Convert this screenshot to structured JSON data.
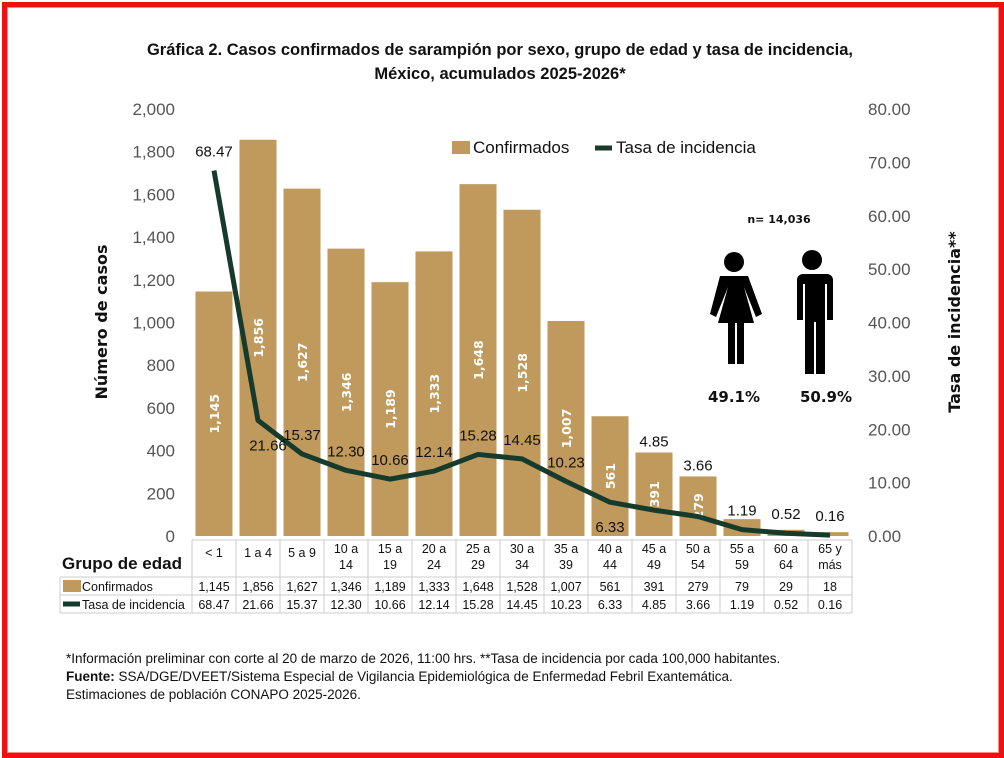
{
  "chart_data": {
    "type": "bar+line",
    "title_line1": "Gráfica 2. Casos confirmados  de sarampión por sexo, grupo de edad y tasa de incidencia,",
    "title_line2": "México, acumulados 2025-2026*",
    "ylabel": "Número de casos",
    "y2label": "Tasa de incidencia**",
    "xlabel": "Grupo de edad",
    "ylim": [
      0,
      2000
    ],
    "y2lim": [
      0,
      80
    ],
    "yticks": [
      "0",
      "200",
      "400",
      "600",
      "800",
      "1,000",
      "1,200",
      "1,400",
      "1,600",
      "1,800",
      "2,000"
    ],
    "y2ticks": [
      "0.00",
      "10.00",
      "20.00",
      "30.00",
      "40.00",
      "50.00",
      "60.00",
      "70.00",
      "80.00"
    ],
    "categories": [
      "< 1",
      "1 a 4",
      "5 a 9",
      "10 a 14",
      "15 a 19",
      "20 a 24",
      "25 a 29",
      "30 a 34",
      "35 a 39",
      "40 a 44",
      "45 a 49",
      "50 a 54",
      "55 a 59",
      "60 a 64",
      "65 y más"
    ],
    "category_lines": [
      [
        "< 1"
      ],
      [
        "1 a 4"
      ],
      [
        "5 a 9"
      ],
      [
        "10 a",
        "14"
      ],
      [
        "15 a",
        "19"
      ],
      [
        "20 a",
        "24"
      ],
      [
        "25 a",
        "29"
      ],
      [
        "30 a",
        "34"
      ],
      [
        "35 a",
        "39"
      ],
      [
        "40 a",
        "44"
      ],
      [
        "45 a",
        "49"
      ],
      [
        "50 a",
        "54"
      ],
      [
        "55 a",
        "59"
      ],
      [
        "60 a",
        "64"
      ],
      [
        "65 y",
        "más"
      ]
    ],
    "series": [
      {
        "name": "Confirmados",
        "type": "bar",
        "color": "#bf9a5c",
        "values": [
          1145,
          1856,
          1627,
          1346,
          1189,
          1333,
          1648,
          1528,
          1007,
          561,
          391,
          279,
          79,
          29,
          18
        ],
        "labels": [
          "1,145",
          "1,856",
          "1,627",
          "1,346",
          "1,189",
          "1,333",
          "1,648",
          "1,528",
          "1,007",
          "561",
          "391",
          "279",
          "79",
          "29",
          "18"
        ]
      },
      {
        "name": "Tasa de incidencia",
        "type": "line",
        "axis": "right",
        "color": "#163b2c",
        "values": [
          68.47,
          21.66,
          15.37,
          12.3,
          10.66,
          12.14,
          15.28,
          14.45,
          10.23,
          6.33,
          4.85,
          3.66,
          1.19,
          0.52,
          0.16
        ],
        "labels": [
          "68.47",
          "21.66",
          "15.37",
          "12.30",
          "10.66",
          "12.14",
          "15.28",
          "14.45",
          "10.23",
          "6.33",
          "4.85",
          "3.66",
          "1.19",
          "0.52",
          "0.16"
        ]
      }
    ],
    "legend_placement": "top-center",
    "grid": false
  },
  "inset": {
    "n_label": "n= 14,036",
    "female_pct": "49.1%",
    "male_pct": "50.9%"
  },
  "footnote": {
    "line1": "*Información preliminar con corte al 20 de marzo de 2026, 11:00 hrs. **Tasa de incidencia por cada 100,000 habitantes.",
    "source_label": "Fuente:",
    "source_text": " SSA/DGE/DVEET/Sistema Especial de Vigilancia Epidemiológica de Enfermedad Febril Exantemática.",
    "line3": "Estimaciones de población CONAPO 2025-2026."
  }
}
